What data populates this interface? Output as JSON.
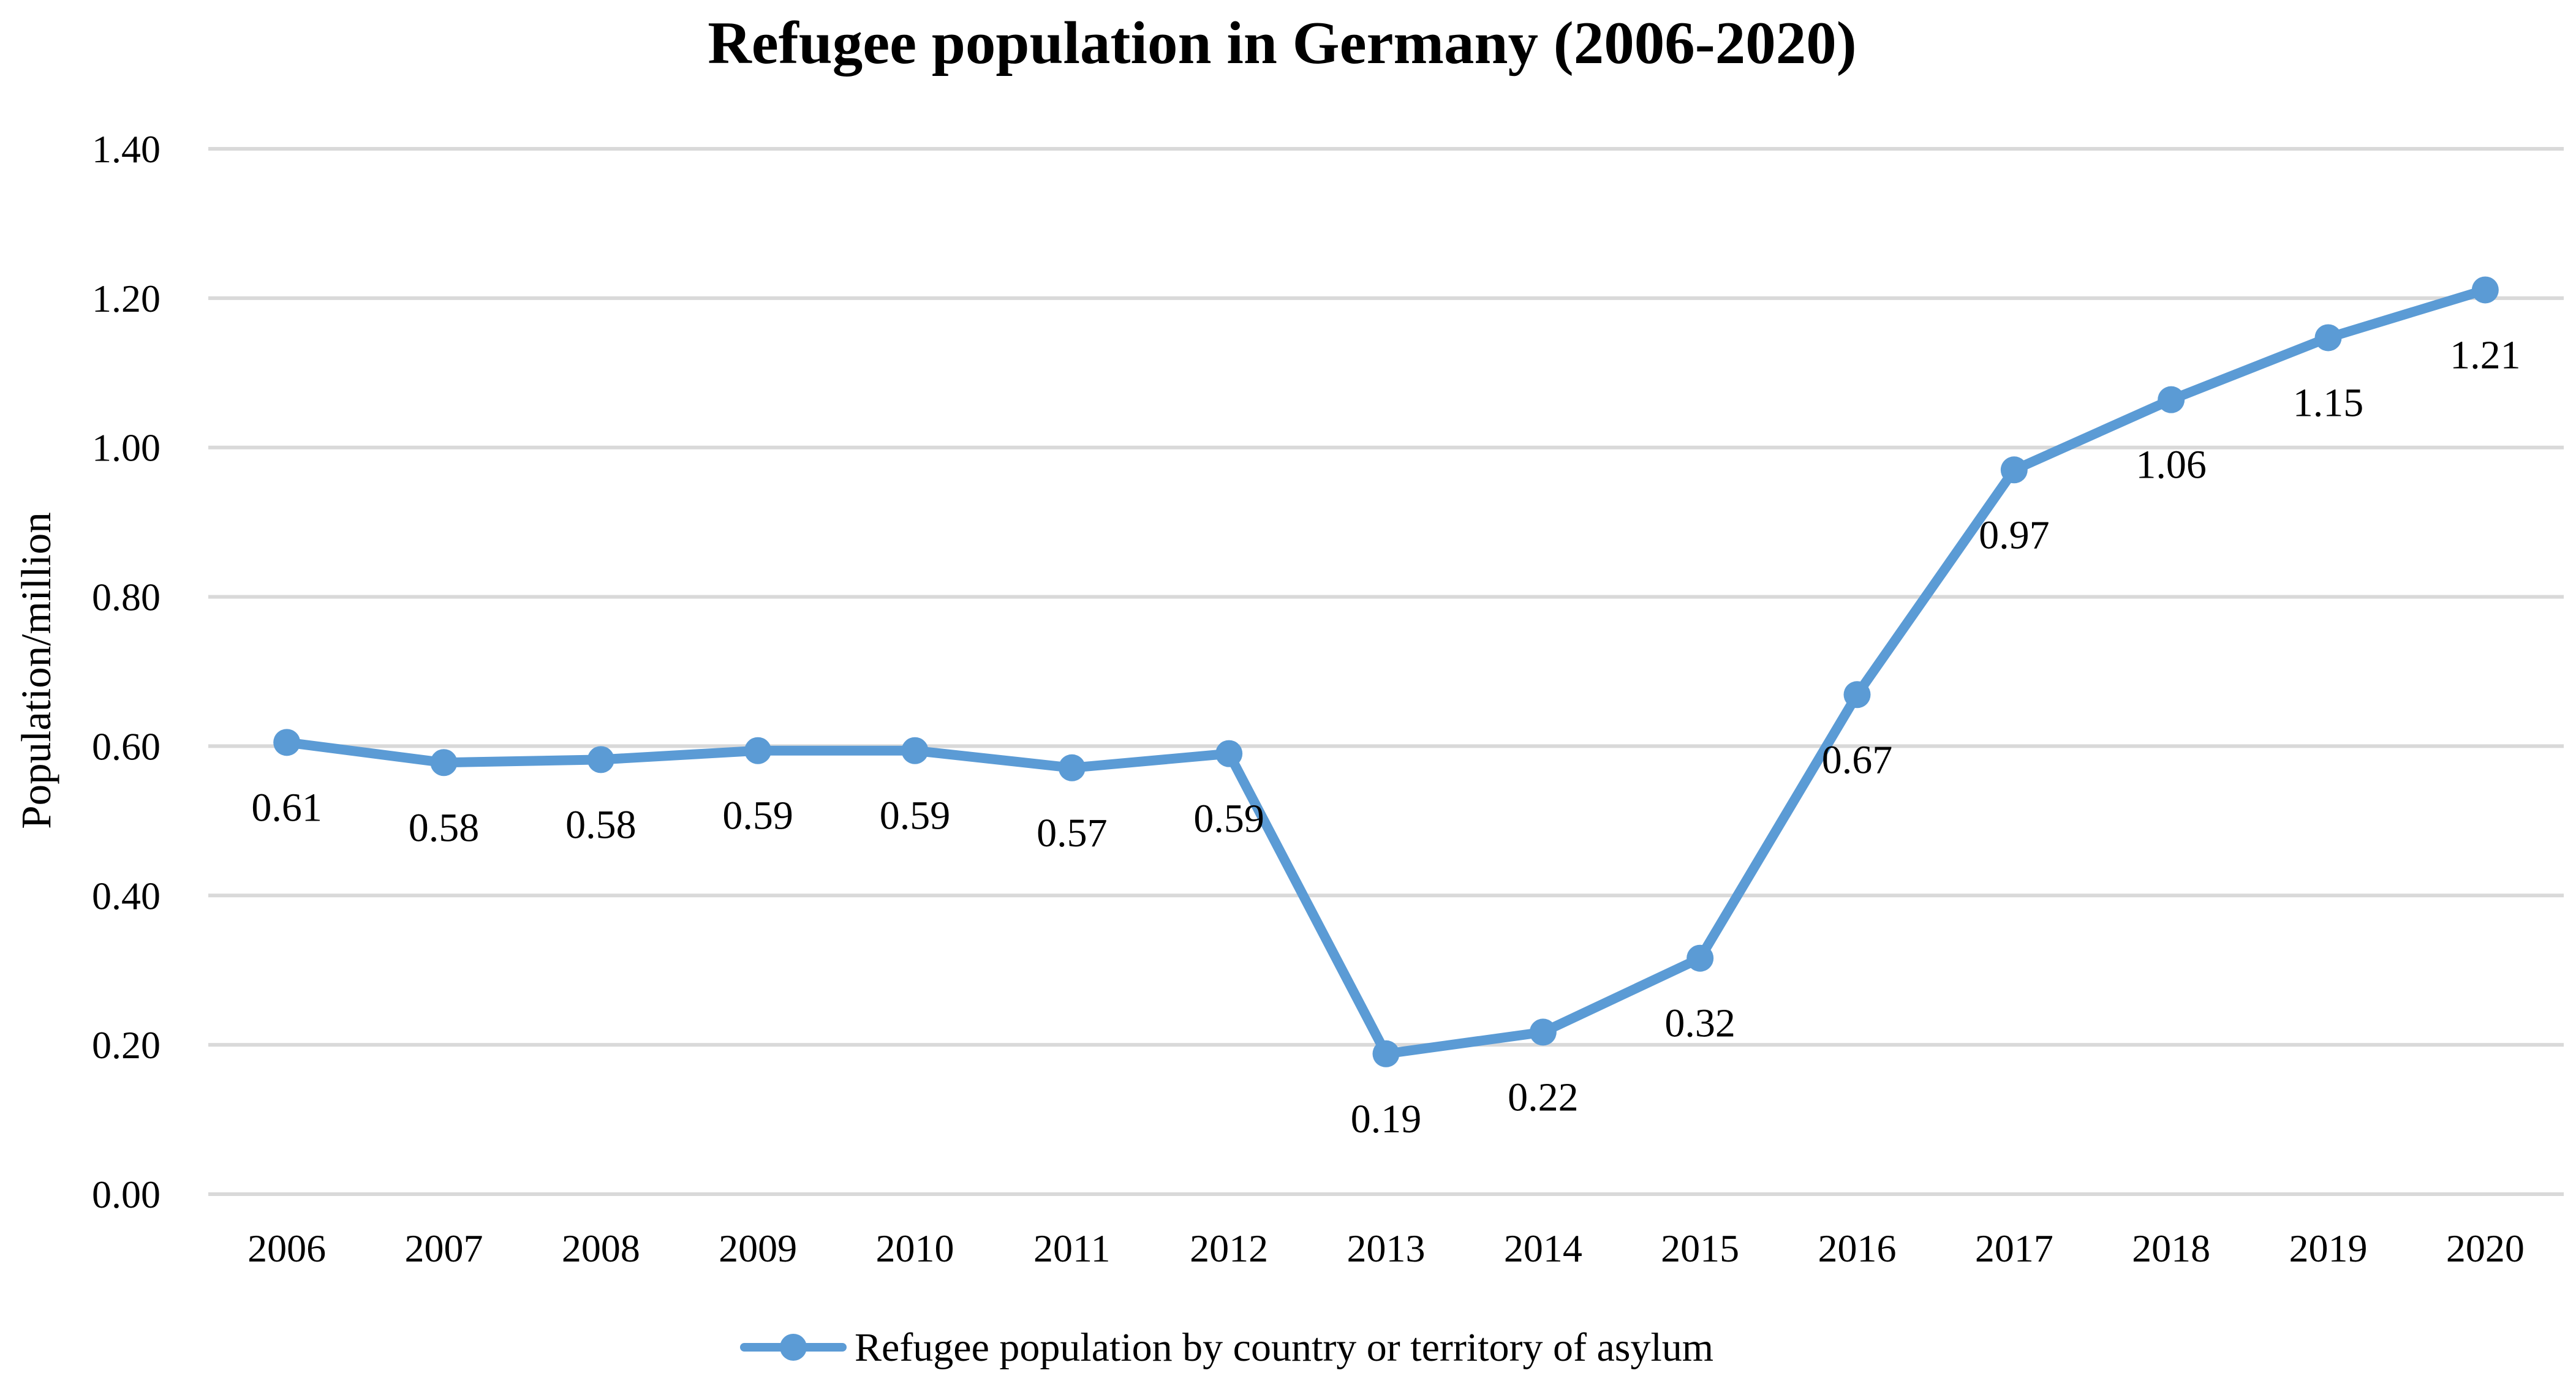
{
  "chart_data": {
    "type": "line",
    "title": "Refugee population in Germany (2006-2020)",
    "xlabel": "",
    "ylabel": "Population/million",
    "ylim": [
      0,
      1.4
    ],
    "yticks": [
      "0.00",
      "0.20",
      "0.40",
      "0.60",
      "0.80",
      "1.00",
      "1.20",
      "1.40"
    ],
    "grid": true,
    "legend_position": "bottom",
    "categories": [
      "2006",
      "2007",
      "2008",
      "2009",
      "2010",
      "2011",
      "2012",
      "2013",
      "2014",
      "2015",
      "2016",
      "2017",
      "2018",
      "2019",
      "2020"
    ],
    "series": [
      {
        "name": "Refugee population by country or territory of asylum",
        "color": "#5b9bd5",
        "values": [
          0.605,
          0.578,
          0.582,
          0.594,
          0.594,
          0.571,
          0.59,
          0.188,
          0.217,
          0.316,
          0.669,
          0.97,
          1.064,
          1.147,
          1.211
        ],
        "labels": [
          "0.61",
          "0.58",
          "0.58",
          "0.59",
          "0.59",
          "0.57",
          "0.59",
          "0.19",
          "0.22",
          "0.32",
          "0.67",
          "0.97",
          "1.06",
          "1.15",
          "1.21"
        ]
      }
    ]
  }
}
